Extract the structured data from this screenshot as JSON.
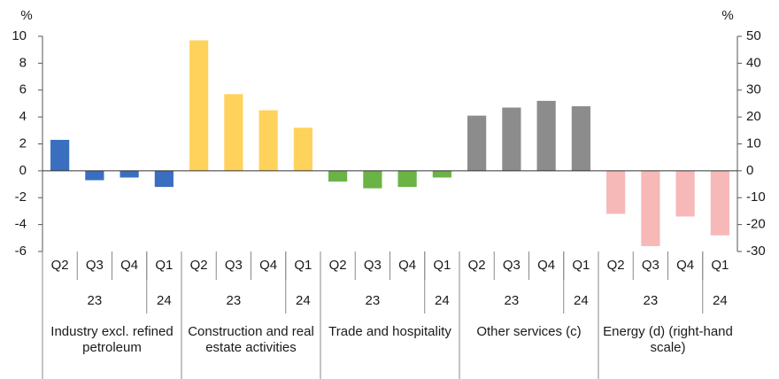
{
  "chart_data": {
    "type": "bar",
    "y_unit": "%",
    "y2_unit": "%",
    "ylim": [
      -6,
      10
    ],
    "yticks": [
      -6,
      -4,
      -2,
      0,
      2,
      4,
      6,
      8,
      10
    ],
    "y2lim": [
      -30,
      50
    ],
    "y2ticks": [
      -30,
      -20,
      -10,
      0,
      10,
      20,
      30,
      40,
      50
    ],
    "groups": [
      {
        "label": "Industry excl. refined petroleum",
        "color": "#3a6fbf",
        "quarters": [
          "Q2",
          "Q3",
          "Q4",
          "Q1"
        ],
        "years": [
          "23",
          "24"
        ],
        "values": [
          2.3,
          -0.7,
          -0.5,
          -1.2
        ]
      },
      {
        "label": "Construction and real estate activities",
        "color": "#ffd25c",
        "quarters": [
          "Q2",
          "Q3",
          "Q4",
          "Q1"
        ],
        "years": [
          "23",
          "24"
        ],
        "values": [
          9.7,
          5.7,
          4.5,
          3.2
        ]
      },
      {
        "label": "Trade and hospitality",
        "color": "#6ab344",
        "quarters": [
          "Q2",
          "Q3",
          "Q4",
          "Q1"
        ],
        "years": [
          "23",
          "24"
        ],
        "values": [
          -0.8,
          -1.3,
          -1.2,
          -0.5
        ]
      },
      {
        "label": "Other services (c)",
        "color": "#8c8c8c",
        "quarters": [
          "Q2",
          "Q3",
          "Q4",
          "Q1"
        ],
        "years": [
          "23",
          "24"
        ],
        "values": [
          4.1,
          4.7,
          5.2,
          4.8
        ]
      },
      {
        "label": "Energy (d) (right-hand scale)",
        "color": "#f7b8b8",
        "axis": "y2",
        "quarters": [
          "Q2",
          "Q3",
          "Q4",
          "Q1"
        ],
        "years": [
          "23",
          "24"
        ],
        "values": [
          -16,
          -28,
          -17,
          -24
        ]
      }
    ]
  }
}
